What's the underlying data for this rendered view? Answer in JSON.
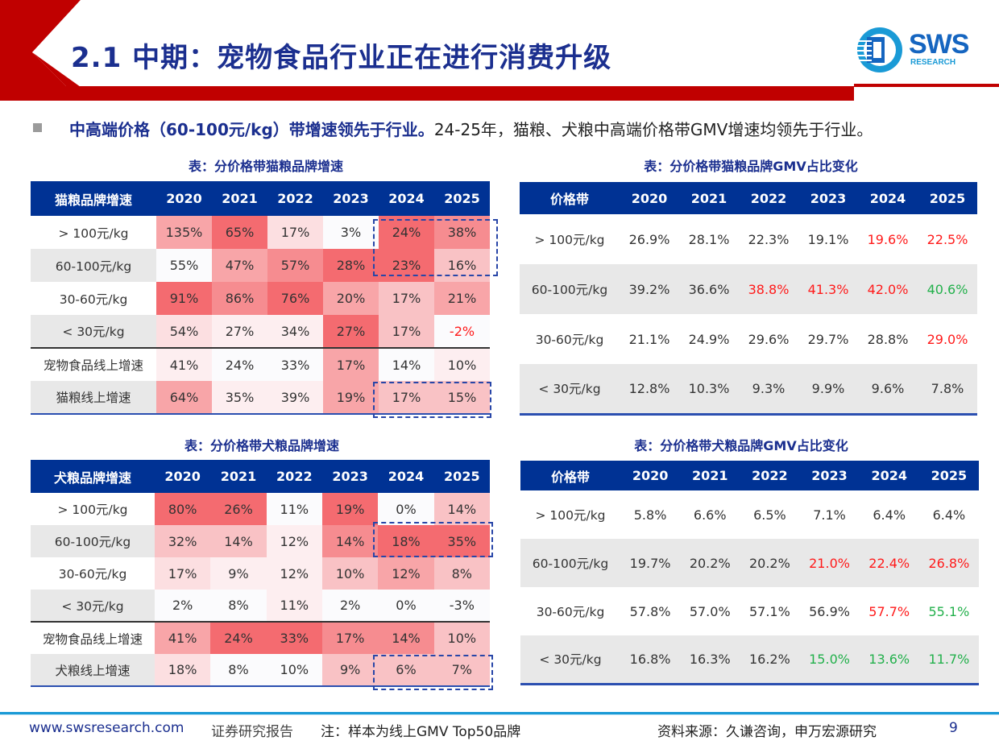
{
  "header": {
    "title": "2.1 中期：宠物食品行业正在进行消费升级",
    "logo": {
      "text": "SWS",
      "sub": "RESEARCH"
    },
    "brand_color": "#c00000",
    "title_color": "#1b2f8f"
  },
  "lead": {
    "bold": "中高端价格（60-100元/kg）带增速领先于行业。",
    "rest": "24-25年，猫粮、犬粮中高端价格带GMV增速均领先于行业。"
  },
  "heat_colors": [
    "#fbfbfd",
    "#fdeef0",
    "#fcdfe1",
    "#f9c2c5",
    "#f8a5a8",
    "#f68c90",
    "#f46b70"
  ],
  "tables": {
    "cat_growth": {
      "title": "表：分价格带猫粮品牌增速",
      "headers": [
        "猫粮品牌增速",
        "2020",
        "2021",
        "2022",
        "2023",
        "2024",
        "2025"
      ],
      "rows": [
        {
          "label": "> 100元/kg",
          "cells": [
            {
              "v": "135%",
              "h": 4
            },
            {
              "v": "65%",
              "h": 6
            },
            {
              "v": "17%",
              "h": 2
            },
            {
              "v": "3%",
              "h": 0
            },
            {
              "v": "24%",
              "h": 6
            },
            {
              "v": "38%",
              "h": 5
            }
          ]
        },
        {
          "label": "60-100元/kg",
          "cells": [
            {
              "v": "55%",
              "h": 0
            },
            {
              "v": "47%",
              "h": 4
            },
            {
              "v": "57%",
              "h": 5
            },
            {
              "v": "28%",
              "h": 6
            },
            {
              "v": "23%",
              "h": 6
            },
            {
              "v": "16%",
              "h": 3
            }
          ]
        },
        {
          "label": "30-60元/kg",
          "cells": [
            {
              "v": "91%",
              "h": 6
            },
            {
              "v": "86%",
              "h": 5
            },
            {
              "v": "76%",
              "h": 6
            },
            {
              "v": "20%",
              "h": 4
            },
            {
              "v": "17%",
              "h": 3
            },
            {
              "v": "21%",
              "h": 4
            }
          ]
        },
        {
          "label": "< 30元/kg",
          "cells": [
            {
              "v": "54%",
              "h": 2
            },
            {
              "v": "27%",
              "h": 1
            },
            {
              "v": "34%",
              "h": 1
            },
            {
              "v": "27%",
              "h": 6
            },
            {
              "v": "17%",
              "h": 3
            },
            {
              "v": "-2%",
              "h": 0,
              "c": "red"
            }
          ]
        },
        {
          "label": "宠物食品线上增速",
          "cells": [
            {
              "v": "41%",
              "h": 1
            },
            {
              "v": "24%",
              "h": 0
            },
            {
              "v": "33%",
              "h": 0
            },
            {
              "v": "17%",
              "h": 4
            },
            {
              "v": "14%",
              "h": 0
            },
            {
              "v": "10%",
              "h": 1
            }
          ]
        },
        {
          "label": "猫粮线上增速",
          "cells": [
            {
              "v": "64%",
              "h": 4
            },
            {
              "v": "35%",
              "h": 1
            },
            {
              "v": "39%",
              "h": 1
            },
            {
              "v": "19%",
              "h": 4
            },
            {
              "v": "17%",
              "h": 3
            },
            {
              "v": "15%",
              "h": 3
            }
          ]
        }
      ]
    },
    "dog_growth": {
      "title": "表：分价格带犬粮品牌增速",
      "headers": [
        "犬粮品牌增速",
        "2020",
        "2021",
        "2022",
        "2023",
        "2024",
        "2025"
      ],
      "rows": [
        {
          "label": "> 100元/kg",
          "cells": [
            {
              "v": "80%",
              "h": 6
            },
            {
              "v": "26%",
              "h": 6
            },
            {
              "v": "11%",
              "h": 0
            },
            {
              "v": "19%",
              "h": 6
            },
            {
              "v": "0%",
              "h": 0
            },
            {
              "v": "14%",
              "h": 3
            }
          ]
        },
        {
          "label": "60-100元/kg",
          "cells": [
            {
              "v": "32%",
              "h": 3
            },
            {
              "v": "14%",
              "h": 3
            },
            {
              "v": "12%",
              "h": 1
            },
            {
              "v": "14%",
              "h": 5
            },
            {
              "v": "18%",
              "h": 6
            },
            {
              "v": "35%",
              "h": 6
            }
          ]
        },
        {
          "label": "30-60元/kg",
          "cells": [
            {
              "v": "17%",
              "h": 2
            },
            {
              "v": "9%",
              "h": 1
            },
            {
              "v": "12%",
              "h": 1
            },
            {
              "v": "10%",
              "h": 3
            },
            {
              "v": "12%",
              "h": 4
            },
            {
              "v": "8%",
              "h": 3
            }
          ]
        },
        {
          "label": "< 30元/kg",
          "cells": [
            {
              "v": "2%",
              "h": 0
            },
            {
              "v": "8%",
              "h": 0
            },
            {
              "v": "11%",
              "h": 1
            },
            {
              "v": "2%",
              "h": 0
            },
            {
              "v": "0%",
              "h": 0
            },
            {
              "v": "-3%",
              "h": 0
            }
          ]
        },
        {
          "label": "宠物食品线上增速",
          "cells": [
            {
              "v": "41%",
              "h": 4
            },
            {
              "v": "24%",
              "h": 6
            },
            {
              "v": "33%",
              "h": 6
            },
            {
              "v": "17%",
              "h": 5
            },
            {
              "v": "14%",
              "h": 5
            },
            {
              "v": "10%",
              "h": 3
            }
          ]
        },
        {
          "label": "犬粮线上增速",
          "cells": [
            {
              "v": "18%",
              "h": 2
            },
            {
              "v": "8%",
              "h": 0
            },
            {
              "v": "10%",
              "h": 0
            },
            {
              "v": "9%",
              "h": 3
            },
            {
              "v": "6%",
              "h": 3
            },
            {
              "v": "7%",
              "h": 3
            }
          ]
        }
      ]
    },
    "cat_share": {
      "title": "表：分价格带猫粮品牌GMV占比变化",
      "headers": [
        "价格带",
        "2020",
        "2021",
        "2022",
        "2023",
        "2024",
        "2025"
      ],
      "rows": [
        {
          "label": "> 100元/kg",
          "cells": [
            {
              "v": "26.9%"
            },
            {
              "v": "28.1%"
            },
            {
              "v": "22.3%"
            },
            {
              "v": "19.1%"
            },
            {
              "v": "19.6%",
              "c": "red"
            },
            {
              "v": "22.5%",
              "c": "red"
            }
          ]
        },
        {
          "label": "60-100元/kg",
          "cells": [
            {
              "v": "39.2%"
            },
            {
              "v": "36.6%"
            },
            {
              "v": "38.8%",
              "c": "red"
            },
            {
              "v": "41.3%",
              "c": "red"
            },
            {
              "v": "42.0%",
              "c": "red"
            },
            {
              "v": "40.6%",
              "c": "green"
            }
          ]
        },
        {
          "label": "30-60元/kg",
          "cells": [
            {
              "v": "21.1%"
            },
            {
              "v": "24.9%"
            },
            {
              "v": "29.6%"
            },
            {
              "v": "29.7%"
            },
            {
              "v": "28.8%"
            },
            {
              "v": "29.0%",
              "c": "red"
            }
          ]
        },
        {
          "label": "< 30元/kg",
          "cells": [
            {
              "v": "12.8%"
            },
            {
              "v": "10.3%"
            },
            {
              "v": "9.3%"
            },
            {
              "v": "9.9%"
            },
            {
              "v": "9.6%"
            },
            {
              "v": "7.8%"
            }
          ]
        }
      ]
    },
    "dog_share": {
      "title": "表：分价格带犬粮品牌GMV占比变化",
      "headers": [
        "价格带",
        "2020",
        "2021",
        "2022",
        "2023",
        "2024",
        "2025"
      ],
      "rows": [
        {
          "label": "> 100元/kg",
          "cells": [
            {
              "v": "5.8%"
            },
            {
              "v": "6.6%"
            },
            {
              "v": "6.5%"
            },
            {
              "v": "7.1%"
            },
            {
              "v": "6.4%"
            },
            {
              "v": "6.4%"
            }
          ]
        },
        {
          "label": "60-100元/kg",
          "cells": [
            {
              "v": "19.7%"
            },
            {
              "v": "20.2%"
            },
            {
              "v": "20.2%"
            },
            {
              "v": "21.0%",
              "c": "red"
            },
            {
              "v": "22.4%",
              "c": "red"
            },
            {
              "v": "26.8%",
              "c": "red"
            }
          ]
        },
        {
          "label": "30-60元/kg",
          "cells": [
            {
              "v": "57.8%"
            },
            {
              "v": "57.0%"
            },
            {
              "v": "57.1%"
            },
            {
              "v": "56.9%"
            },
            {
              "v": "57.7%",
              "c": "red"
            },
            {
              "v": "55.1%",
              "c": "green"
            }
          ]
        },
        {
          "label": "< 30元/kg",
          "cells": [
            {
              "v": "16.8%"
            },
            {
              "v": "16.3%"
            },
            {
              "v": "16.2%"
            },
            {
              "v": "15.0%",
              "c": "green"
            },
            {
              "v": "13.6%",
              "c": "green"
            },
            {
              "v": "11.7%",
              "c": "green"
            }
          ]
        }
      ]
    }
  },
  "text_colors": {
    "red": "#ff1a1a",
    "green": "#22b04b"
  },
  "footer": {
    "website": "www.swsresearch.com",
    "report_type": "证券研究报告",
    "note": "注：样本为线上GMV Top50品牌",
    "source": "资料来源：久谦咨询，申万宏源研究",
    "page": "9"
  }
}
